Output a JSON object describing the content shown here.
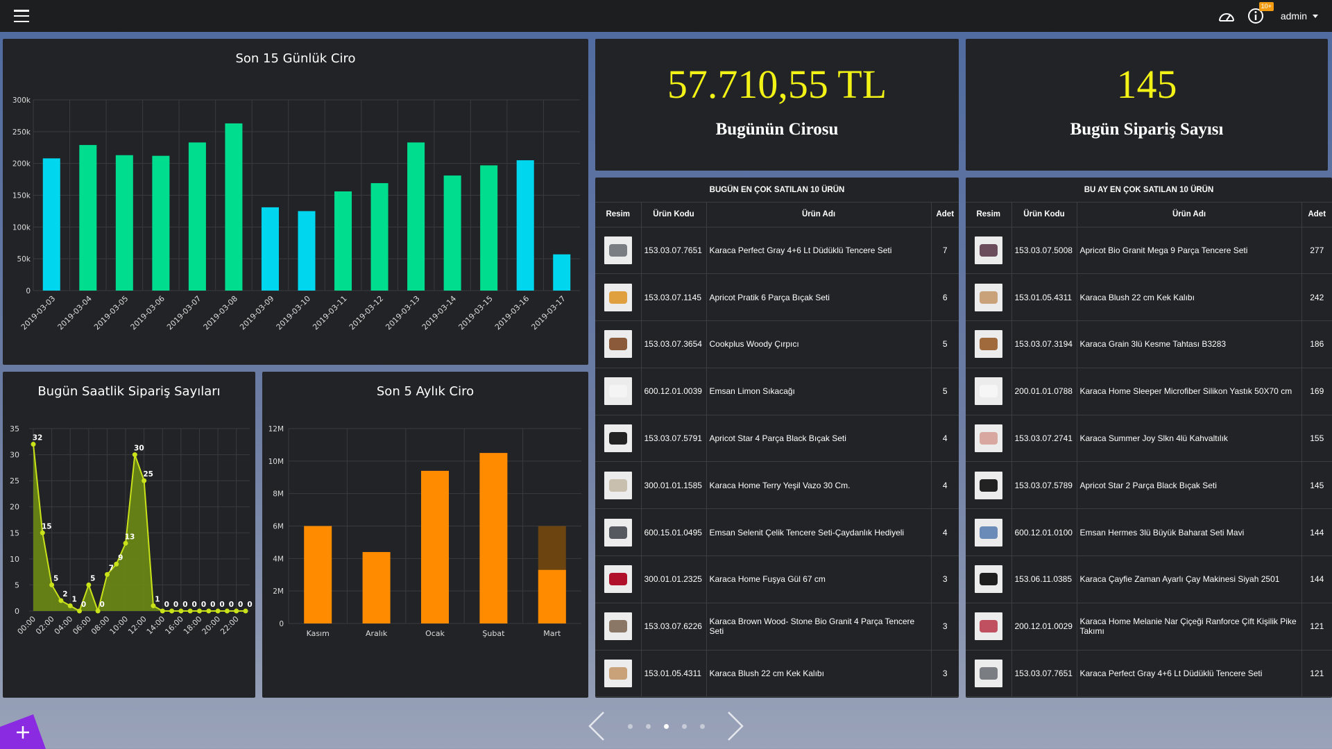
{
  "topbar": {
    "user": "admin",
    "notification_badge": "10+",
    "icons": [
      "menu-icon",
      "dashboard-icon",
      "info-icon"
    ]
  },
  "daily": {
    "title": "Son 15 Günlük Ciro",
    "chart_data": {
      "type": "bar",
      "categories": [
        "2019-03-03",
        "2019-03-04",
        "2019-03-05",
        "2019-03-06",
        "2019-03-07",
        "2019-03-08",
        "2019-03-09",
        "2019-03-10",
        "2019-03-11",
        "2019-03-12",
        "2019-03-13",
        "2019-03-14",
        "2019-03-15",
        "2019-03-16",
        "2019-03-17"
      ],
      "values": [
        208000,
        229000,
        213000,
        212000,
        233000,
        263000,
        131000,
        125000,
        156000,
        169000,
        233000,
        181000,
        197000,
        205000,
        57000
      ],
      "colors": [
        "#00d7ee",
        "#00dd8f",
        "#00dd8f",
        "#00dd8f",
        "#00dd8f",
        "#00dd8f",
        "#00d7ee",
        "#00d7ee",
        "#00dd8f",
        "#00dd8f",
        "#00dd8f",
        "#00dd8f",
        "#00dd8f",
        "#00d7ee",
        "#00d7ee"
      ],
      "ylim": [
        0,
        300000
      ],
      "yticks": [
        0,
        50000,
        100000,
        150000,
        200000,
        250000,
        300000
      ],
      "ytick_labels": [
        "0",
        "50k",
        "100k",
        "150k",
        "200k",
        "250k",
        "300k"
      ],
      "grid": true
    }
  },
  "hourly": {
    "title": "Bugün Saatlik Sipariş Sayıları",
    "chart_data": {
      "type": "area",
      "x": [
        "00:00",
        "01:00",
        "02:00",
        "03:00",
        "04:00",
        "05:00",
        "06:00",
        "07:00",
        "08:00",
        "09:00",
        "10:00",
        "11:00",
        "12:00",
        "13:00",
        "14:00",
        "15:00",
        "16:00",
        "17:00",
        "18:00",
        "19:00",
        "20:00",
        "21:00",
        "22:00",
        "23:00"
      ],
      "xtick_labels": [
        "00:00",
        "02:00",
        "04:00",
        "06:00",
        "08:00",
        "10:00",
        "12:00",
        "14:00",
        "16:00",
        "18:00",
        "20:00",
        "22:00"
      ],
      "values": [
        32,
        15,
        5,
        2,
        1,
        0,
        5,
        0,
        7,
        9,
        13,
        30,
        25,
        1,
        0,
        0,
        0,
        0,
        0,
        0,
        0,
        0,
        0,
        0
      ],
      "ylim": [
        0,
        35
      ],
      "yticks": [
        0,
        5,
        10,
        15,
        20,
        25,
        30,
        35
      ],
      "color": "#c9e21a",
      "grid": true
    }
  },
  "monthly": {
    "title": "Son 5 Aylık Ciro",
    "chart_data": {
      "type": "bar",
      "categories": [
        "Kasım",
        "Aralık",
        "Ocak",
        "Şubat",
        "Mart"
      ],
      "values": [
        6000000,
        4400000,
        9400000,
        10500000,
        3300000
      ],
      "projection": [
        null,
        null,
        null,
        null,
        6000000
      ],
      "color": "#ff8c00",
      "projection_color": "#6b4410",
      "ylim": [
        0,
        12000000
      ],
      "yticks": [
        0,
        2000000,
        4000000,
        6000000,
        8000000,
        10000000,
        12000000
      ],
      "ytick_labels": [
        "0",
        "2M",
        "4M",
        "6M",
        "8M",
        "10M",
        "12M"
      ],
      "grid": true
    }
  },
  "kpi_revenue": {
    "value": "57.710,55 TL",
    "label": "Bugünün Cirosu"
  },
  "kpi_orders": {
    "value": "145",
    "label": "Bugün Sipariş Sayısı"
  },
  "table_today": {
    "title": "BUGÜN EN ÇOK SATILAN 10 ÜRÜN",
    "headers": [
      "Resim",
      "Ürün Kodu",
      "Ürün Adı",
      "Adet"
    ],
    "rows": [
      {
        "code": "153.03.07.7651",
        "name": "Karaca Perfect Gray 4+6 Lt Düdüklü Tencere Seti",
        "qty": "7",
        "thumb": "#7a7d82"
      },
      {
        "code": "153.03.07.1145",
        "name": "Apricot Pratik 6 Parça Bıçak Seti",
        "qty": "6",
        "thumb": "#e0a040"
      },
      {
        "code": "153.03.07.3654",
        "name": "Cookplus Woody Çırpıcı",
        "qty": "5",
        "thumb": "#8a5a3a"
      },
      {
        "code": "600.12.01.0039",
        "name": "Emsan Limon Sıkacağı",
        "qty": "5",
        "thumb": "#f4f4f4"
      },
      {
        "code": "153.03.07.5791",
        "name": "Apricot Star 4 Parça Black Bıçak Seti",
        "qty": "4",
        "thumb": "#222222"
      },
      {
        "code": "300.01.01.1585",
        "name": "Karaca Home Terry Yeşil Vazo 30 Cm.",
        "qty": "4",
        "thumb": "#c8bfae"
      },
      {
        "code": "600.15.01.0495",
        "name": "Emsan Selenit Çelik Tencere Seti-Çaydanlık Hediyeli",
        "qty": "4",
        "thumb": "#55585e"
      },
      {
        "code": "300.01.01.2325",
        "name": "Karaca Home Fuşya Gül 67 cm",
        "qty": "3",
        "thumb": "#b0102a"
      },
      {
        "code": "153.03.07.6226",
        "name": "Karaca Brown Wood- Stone Bio Granit 4 Parça Tencere Seti",
        "qty": "3",
        "thumb": "#8a7766"
      },
      {
        "code": "153.01.05.4311",
        "name": "Karaca Blush 22 cm Kek Kalıbı",
        "qty": "3",
        "thumb": "#c9a27a"
      }
    ]
  },
  "table_month": {
    "title": "BU AY EN ÇOK SATILAN 10 ÜRÜN",
    "headers": [
      "Resim",
      "Ürün Kodu",
      "Ürün Adı",
      "Adet"
    ],
    "rows": [
      {
        "code": "153.03.07.5008",
        "name": "Apricot Bio Granit Mega 9 Parça Tencere Seti",
        "qty": "277",
        "thumb": "#6a4c5c"
      },
      {
        "code": "153.01.05.4311",
        "name": "Karaca Blush 22 cm Kek Kalıbı",
        "qty": "242",
        "thumb": "#c9a27a"
      },
      {
        "code": "153.03.07.3194",
        "name": "Karaca Grain 3lü Kesme Tahtası B3283",
        "qty": "186",
        "thumb": "#a06a3c"
      },
      {
        "code": "200.01.01.0788",
        "name": "Karaca Home Sleeper Microfiber Silikon Yastık 50X70 cm",
        "qty": "169",
        "thumb": "#f6f6f6"
      },
      {
        "code": "153.03.07.2741",
        "name": "Karaca Summer Joy Slkn 4lü Kahvaltılık",
        "qty": "155",
        "thumb": "#d8a8a0"
      },
      {
        "code": "153.03.07.5789",
        "name": "Apricot Star 2 Parça Black Bıçak Seti",
        "qty": "145",
        "thumb": "#222222"
      },
      {
        "code": "600.12.01.0100",
        "name": "Emsan Hermes 3lü Büyük Baharat Seti Mavi",
        "qty": "144",
        "thumb": "#6a8ab8"
      },
      {
        "code": "153.06.11.0385",
        "name": "Karaca Çayfie Zaman Ayarlı Çay Makinesi Siyah 2501",
        "qty": "144",
        "thumb": "#1e1e1e"
      },
      {
        "code": "200.12.01.0029",
        "name": "Karaca Home Melanie Nar Çiçeği Ranforce Çift Kişilik Pike Takımı",
        "qty": "121",
        "thumb": "#c05060"
      },
      {
        "code": "153.03.07.7651",
        "name": "Karaca Perfect Gray 4+6 Lt Düdüklü Tencere Seti",
        "qty": "121",
        "thumb": "#7a7d82"
      }
    ]
  },
  "carousel": {
    "pages": 5,
    "active_page": 3
  }
}
